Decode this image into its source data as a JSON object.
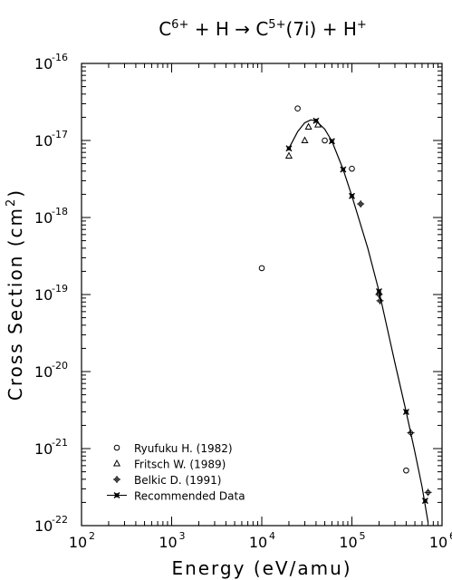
{
  "chart_data": {
    "type": "scatter",
    "title": {
      "parts": [
        {
          "text": "C",
          "sup": false
        },
        {
          "text": "6+",
          "sup": true
        },
        {
          "text": " + H → C",
          "sup": false
        },
        {
          "text": "5+",
          "sup": true
        },
        {
          "text": "(7i) + H",
          "sup": false
        },
        {
          "text": "+",
          "sup": true
        }
      ]
    },
    "xlabel": "Energy (eV/amu)",
    "ylabel": {
      "parts": [
        {
          "text": "Cross Section (cm",
          "sup": false
        },
        {
          "text": "2",
          "sup": true
        },
        {
          "text": ")",
          "sup": false
        }
      ]
    },
    "xscale": "log",
    "yscale": "log",
    "xlim": [
      100,
      1000000
    ],
    "ylim": [
      1e-22,
      1e-16
    ],
    "x_ticks": [
      {
        "value": 100,
        "base": "10",
        "exp": "2"
      },
      {
        "value": 1000,
        "base": "10",
        "exp": "3"
      },
      {
        "value": 10000,
        "base": "10",
        "exp": "4"
      },
      {
        "value": 100000,
        "base": "10",
        "exp": "5"
      },
      {
        "value": 1000000,
        "base": "10",
        "exp": "6"
      }
    ],
    "y_ticks": [
      {
        "value": 1e-16,
        "base": "10",
        "exp": "-16"
      },
      {
        "value": 1e-17,
        "base": "10",
        "exp": "-17"
      },
      {
        "value": 1e-18,
        "base": "10",
        "exp": "-18"
      },
      {
        "value": 1e-19,
        "base": "10",
        "exp": "-19"
      },
      {
        "value": 1e-20,
        "base": "10",
        "exp": "-20"
      },
      {
        "value": 1e-21,
        "base": "10",
        "exp": "-21"
      },
      {
        "value": 1e-22,
        "base": "10",
        "exp": "-22"
      }
    ],
    "legend_position": "bottom-left",
    "series": [
      {
        "name": "Ryufuku H. (1982)",
        "marker": "circle",
        "points": [
          [
            10000,
            2.2e-19
          ],
          [
            25000,
            2.6e-17
          ],
          [
            50000,
            1e-17
          ],
          [
            100000,
            4.3e-18
          ],
          [
            400000,
            5.2e-22
          ]
        ]
      },
      {
        "name": "Fritsch W. (1989)",
        "marker": "triangle",
        "points": [
          [
            20000,
            6.3e-18
          ],
          [
            30000,
            1e-17
          ],
          [
            33000,
            1.5e-17
          ],
          [
            42000,
            1.6e-17
          ]
        ]
      },
      {
        "name": "Belkic D. (1991)",
        "marker": "plus",
        "points": [
          [
            125000,
            1.5e-18
          ],
          [
            200000,
            1e-19
          ],
          [
            205000,
            8.3e-20
          ],
          [
            450000,
            1.6e-21
          ],
          [
            700000,
            2.7e-22
          ]
        ]
      },
      {
        "name": "Recommended Data",
        "marker": "x-line",
        "points": [
          [
            20000,
            7.9e-18
          ],
          [
            40000,
            1.8e-17
          ],
          [
            60000,
            9.8e-18
          ],
          [
            80000,
            4.2e-18
          ],
          [
            100000,
            1.9e-18
          ],
          [
            200000,
            1.1e-19
          ],
          [
            400000,
            3e-21
          ],
          [
            650000,
            2.1e-22
          ]
        ],
        "curve": [
          [
            20000,
            7.9e-18
          ],
          [
            25000,
            1.3e-17
          ],
          [
            30000,
            1.7e-17
          ],
          [
            35000,
            1.85e-17
          ],
          [
            40000,
            1.8e-17
          ],
          [
            50000,
            1.4e-17
          ],
          [
            60000,
            9.8e-18
          ],
          [
            80000,
            4.2e-18
          ],
          [
            100000,
            1.9e-18
          ],
          [
            150000,
            4e-19
          ],
          [
            200000,
            1.1e-19
          ],
          [
            300000,
            1.3e-20
          ],
          [
            400000,
            3e-21
          ],
          [
            500000,
            9e-22
          ],
          [
            600000,
            3.2e-22
          ],
          [
            700000,
            1.1e-22
          ]
        ]
      }
    ]
  }
}
